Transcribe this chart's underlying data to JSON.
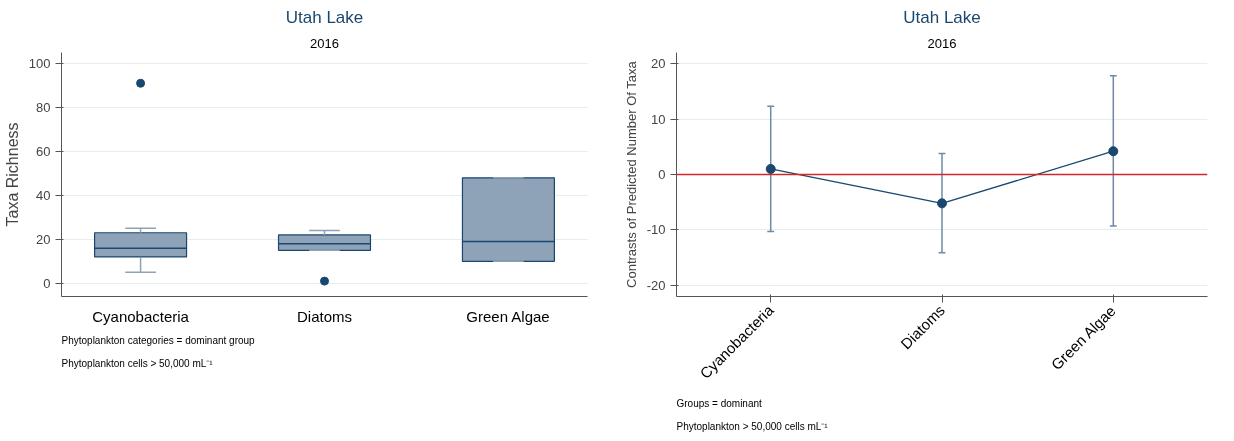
{
  "chart_data": [
    {
      "type": "box",
      "title": "Utah Lake",
      "subtitle": "2016",
      "ylabel": "Taxa Richness",
      "categories": [
        "Cyanobacteria",
        "Diatoms",
        "Green Algae"
      ],
      "boxes": [
        {
          "low": 5,
          "q1": 12,
          "median": 16,
          "q3": 23,
          "high": 25,
          "outliers": [
            91
          ]
        },
        {
          "low": 15,
          "q1": 15,
          "median": 18,
          "q3": 22,
          "high": 24,
          "outliers": [
            1
          ]
        },
        {
          "low": 10,
          "q1": 10,
          "median": 19,
          "q3": 48,
          "high": 48
        }
      ],
      "color": "#8ea3b8",
      "ylim": [
        -6,
        105
      ],
      "yticks": [
        0,
        20,
        40,
        60,
        80,
        100
      ],
      "grid": "y",
      "annotations": [
        "Phytoplankton categories = dominant group",
        "Phytoplankton cells > 50,000 mL⁻¹"
      ]
    },
    {
      "type": "line",
      "title": "Utah Lake",
      "subtitle": "2016",
      "ylabel": "Contrasts of Predicted Number Of Taxa",
      "categories": [
        "Cyanobacteria",
        "Diatoms",
        "Green Algae"
      ],
      "series": [
        {
          "color": "#1a476f",
          "values": [
            1,
            -5.2,
            4.2
          ],
          "errors": [
            [
              -10.3,
              12.3
            ],
            [
              -14.1,
              3.8
            ],
            [
              -9.3,
              17.8
            ]
          ]
        }
      ],
      "marker": "circle",
      "line_style": "solid",
      "ref_lines": [
        {
          "axis": "y",
          "value": 0,
          "color": "#d62728"
        }
      ],
      "ylim": [
        -22,
        22
      ],
      "yticks": [
        -20,
        -10,
        0,
        10,
        20
      ],
      "grid": "y",
      "annotations": [
        "Groups = dominant",
        "Phytoplankton > 50,000 cells mL⁻¹"
      ]
    }
  ]
}
